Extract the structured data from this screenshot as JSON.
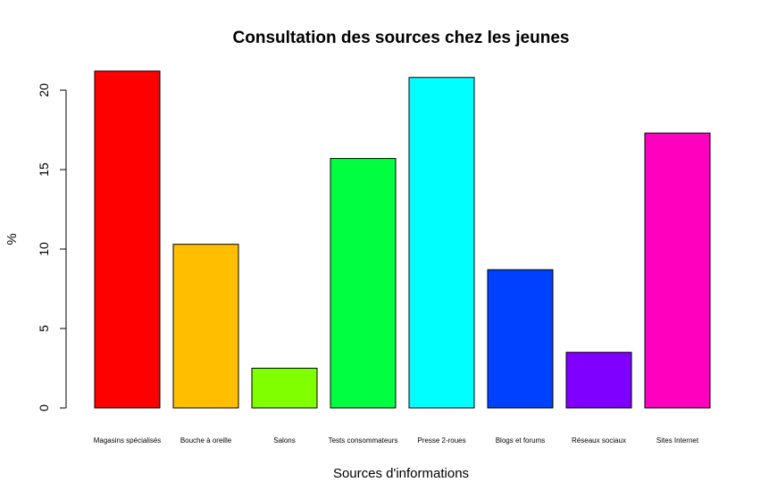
{
  "chart_data": {
    "type": "bar",
    "title": "Consultation des sources chez les jeunes",
    "xlabel": "Sources d'informations",
    "ylabel": "%",
    "categories": [
      "Magasins spécialisés",
      "Bouche à oreille",
      "Salons",
      "Tests consommateurs",
      "Presse 2-roues",
      "Blogs et forums",
      "Réseaux sociaux",
      "Sites Internet"
    ],
    "values": [
      21.2,
      10.3,
      2.5,
      15.7,
      20.8,
      8.7,
      3.5,
      17.3
    ],
    "colors": [
      "#FF0000",
      "#FFBF00",
      "#80FF00",
      "#00FF40",
      "#00FFFF",
      "#0040FF",
      "#8000FF",
      "#FF00BF"
    ],
    "ylim": [
      0,
      21.2
    ],
    "yticks": [
      0,
      5,
      10,
      15,
      20
    ],
    "grid": false,
    "legend": "none"
  }
}
